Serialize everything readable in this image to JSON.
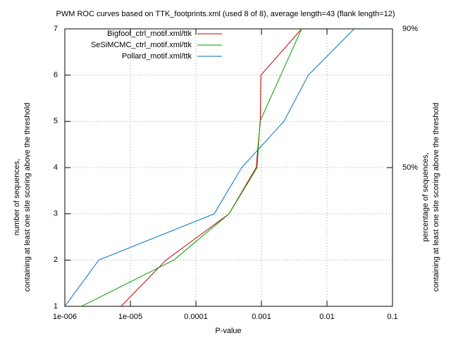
{
  "chart_data": {
    "type": "line",
    "title": "PWM ROC curves based on TTK_footprints.xml (used 8 of 8), average length=43 (flank length=12)",
    "xlabel": "P-value",
    "ylabel": [
      "number of sequences,",
      "containing at least one site scoring above the threshold"
    ],
    "y2label": [
      "percentage of sequences,",
      "containing at least one site scoring above the threshold"
    ],
    "xscale": "log",
    "xlim": [
      1e-06,
      0.1
    ],
    "xticks": [
      {
        "value": 1e-06,
        "label": "1e-006"
      },
      {
        "value": 1e-05,
        "label": "1e-005"
      },
      0.0001,
      0.001,
      0.01,
      0.1
    ],
    "ylim": [
      1,
      7
    ],
    "yticks": [
      1,
      2,
      3,
      4,
      5,
      6,
      7
    ],
    "y2lim": [
      10,
      90
    ],
    "y2ticks": [
      {
        "value": 50,
        "label": "50%"
      },
      {
        "value": 90,
        "label": "90%"
      }
    ],
    "grid": true,
    "legend": "top",
    "series": [
      {
        "name": "Bigfoot_ctrl_motif.xml/ttk",
        "color": "#c00000",
        "x": [
          7.2e-06,
          3.5e-05,
          0.00032,
          0.00083,
          0.00096,
          0.00098,
          0.0041
        ],
        "values": [
          1,
          2,
          3,
          4,
          5,
          6,
          7
        ]
      },
      {
        "name": "SeSiMCMC_ctrl_motif.xml/ttk",
        "color": "#00a000",
        "x": [
          1.8e-06,
          4.6e-05,
          0.00032,
          0.00086,
          0.00095,
          0.0041
        ],
        "values": [
          1,
          2,
          3,
          4,
          5,
          7
        ]
      },
      {
        "name": "Pollard_motif.xml/ttk",
        "color": "#0072bd",
        "x": [
          1e-06,
          3.3e-06,
          0.00019,
          0.0005,
          0.0022,
          0.0052,
          0.026
        ],
        "values": [
          1,
          2,
          3,
          4,
          5,
          6,
          7
        ]
      }
    ]
  }
}
